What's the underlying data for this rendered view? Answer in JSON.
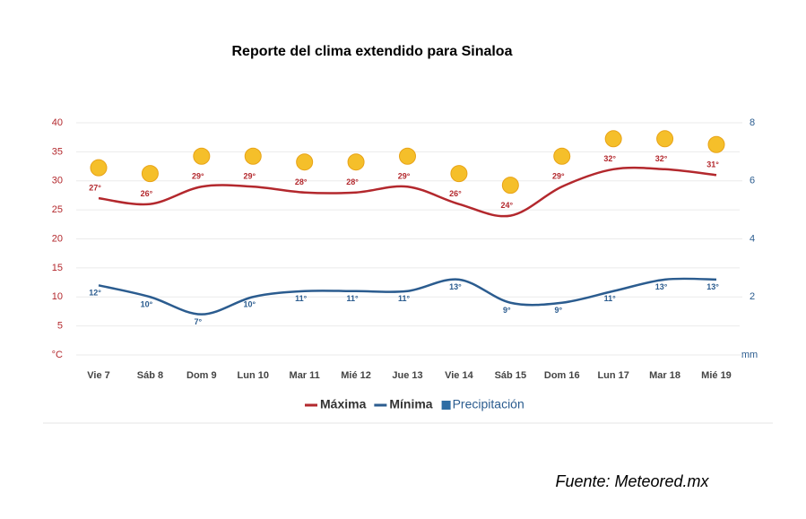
{
  "chart_data": {
    "type": "line",
    "title": "Reporte del clima extendido para Sinaloa",
    "categories": [
      "Vie 7",
      "Sáb 8",
      "Dom 9",
      "Lun 10",
      "Mar 11",
      "Mié 12",
      "Jue 13",
      "Vie 14",
      "Sáb 15",
      "Dom 16",
      "Lun 17",
      "Mar 18",
      "Mié 19"
    ],
    "series": [
      {
        "name": "Máxima",
        "color": "#b3282d",
        "values": [
          27,
          26,
          29,
          29,
          28,
          28,
          29,
          26,
          24,
          29,
          32,
          32,
          31
        ],
        "value_labels": [
          "27°",
          "26°",
          "29°",
          "29°",
          "28°",
          "28°",
          "29°",
          "26°",
          "24°",
          "29°",
          "32°",
          "32°",
          "31°"
        ]
      },
      {
        "name": "Mínima",
        "color": "#2b5c8f",
        "values": [
          12,
          10,
          7,
          10,
          11,
          11,
          11,
          13,
          9,
          9,
          11,
          13,
          13
        ],
        "value_labels": [
          "12°",
          "10°",
          "7°",
          "10°",
          "11°",
          "11°",
          "11°",
          "13°",
          "9°",
          "9°",
          "11°",
          "13°",
          "13°"
        ]
      },
      {
        "name": "Precipitación",
        "color": "#2e6da4",
        "axis": "y2",
        "values": [
          0,
          0,
          0,
          0,
          0,
          0,
          0,
          0,
          0,
          0,
          0,
          0,
          0
        ]
      }
    ],
    "ylim": [
      0,
      40
    ],
    "yticks": [
      {
        "value": 0,
        "label": "°C"
      },
      5,
      10,
      15,
      20,
      25,
      30,
      35,
      40
    ],
    "y2lim": [
      0,
      8
    ],
    "y2ticks": [
      {
        "value": 0,
        "label": "mm"
      },
      2,
      4,
      6,
      8
    ],
    "grid": true,
    "source": "Fuente: Meteored.mx"
  }
}
